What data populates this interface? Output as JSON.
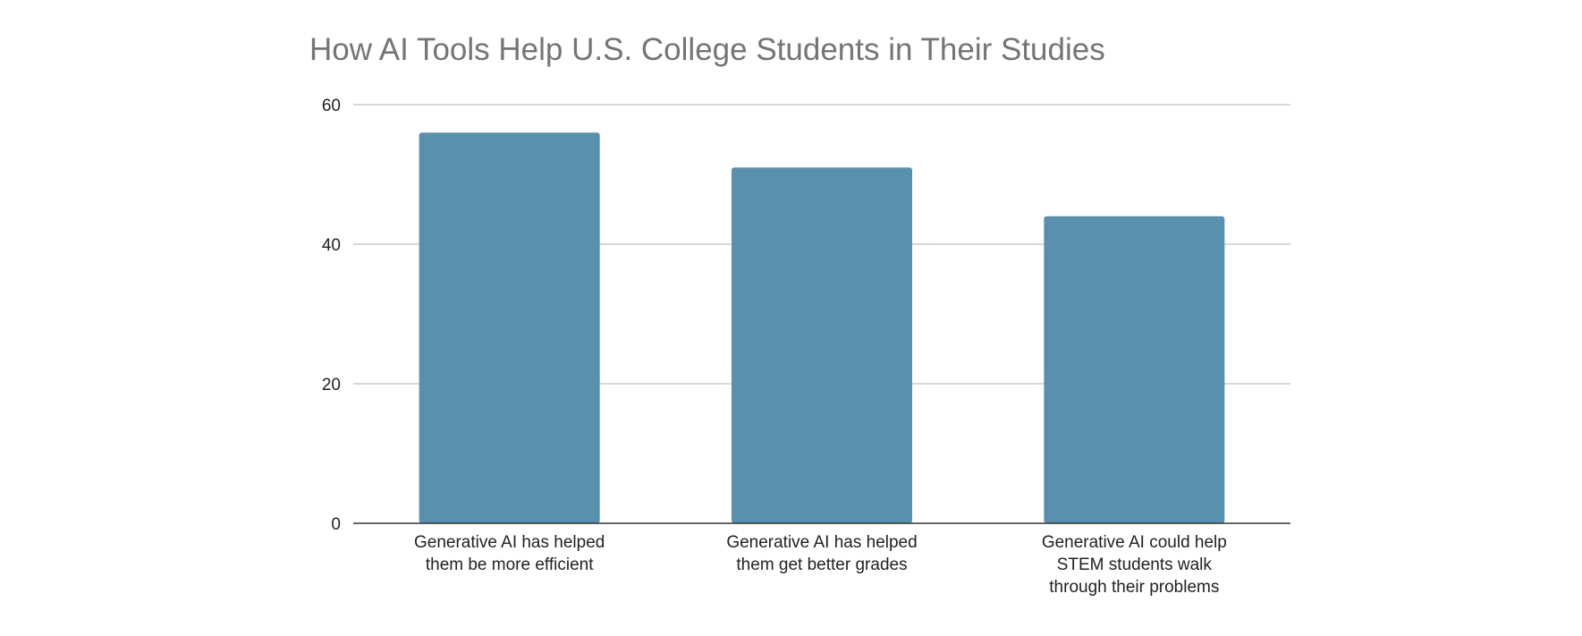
{
  "chart_data": {
    "type": "bar",
    "title": "How AI Tools Help U.S. College Students in Their Studies",
    "categories": [
      [
        "Generative AI has helped",
        "them be more efficient"
      ],
      [
        "Generative AI has helped",
        "them get better grades"
      ],
      [
        "Generative AI could help",
        "STEM students walk",
        "through their problems"
      ]
    ],
    "values": [
      56,
      51,
      44
    ],
    "ylim": [
      0,
      60
    ],
    "yticks": [
      0,
      20,
      40,
      60
    ],
    "xlabel": "",
    "ylabel": "",
    "grid": true,
    "legend": "none",
    "bar_color": "#5890ad",
    "title_color": "#757575"
  }
}
